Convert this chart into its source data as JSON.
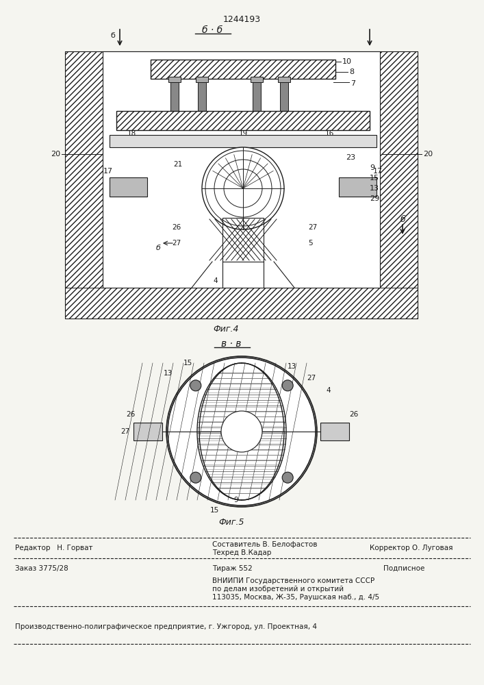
{
  "patent_number": "1244193",
  "fig4_label": "б · б",
  "fig5_label": "в · в",
  "fig4_caption": "Фиг.4",
  "fig5_caption": "Фиг.5",
  "editor_line": "Редактор   Н. Горват",
  "composer_line": "Составитель В. Белофастов",
  "techred_line": "Техред В.Кадар",
  "corrector_line": "Корректор О. Луговая",
  "order_line": "Заказ 3775/28",
  "tirazh_line": "Тираж 552",
  "podpisnoe_line": "Подписное",
  "vniiipi_line": "ВНИИПИ Государственного комитета СССР",
  "vniiipi_line2": "по делам изобретений и открытий",
  "vniiipi_line3": "113035, Москва, Ж-35, Раушская наб., д. 4/5",
  "factory_line": "Производственно-полиграфическое предприятие, г. Ужгород, ул. Проектная, 4",
  "bg_color": "#f5f5f0",
  "line_color": "#1a1a1a",
  "hatch_color": "#1a1a1a"
}
